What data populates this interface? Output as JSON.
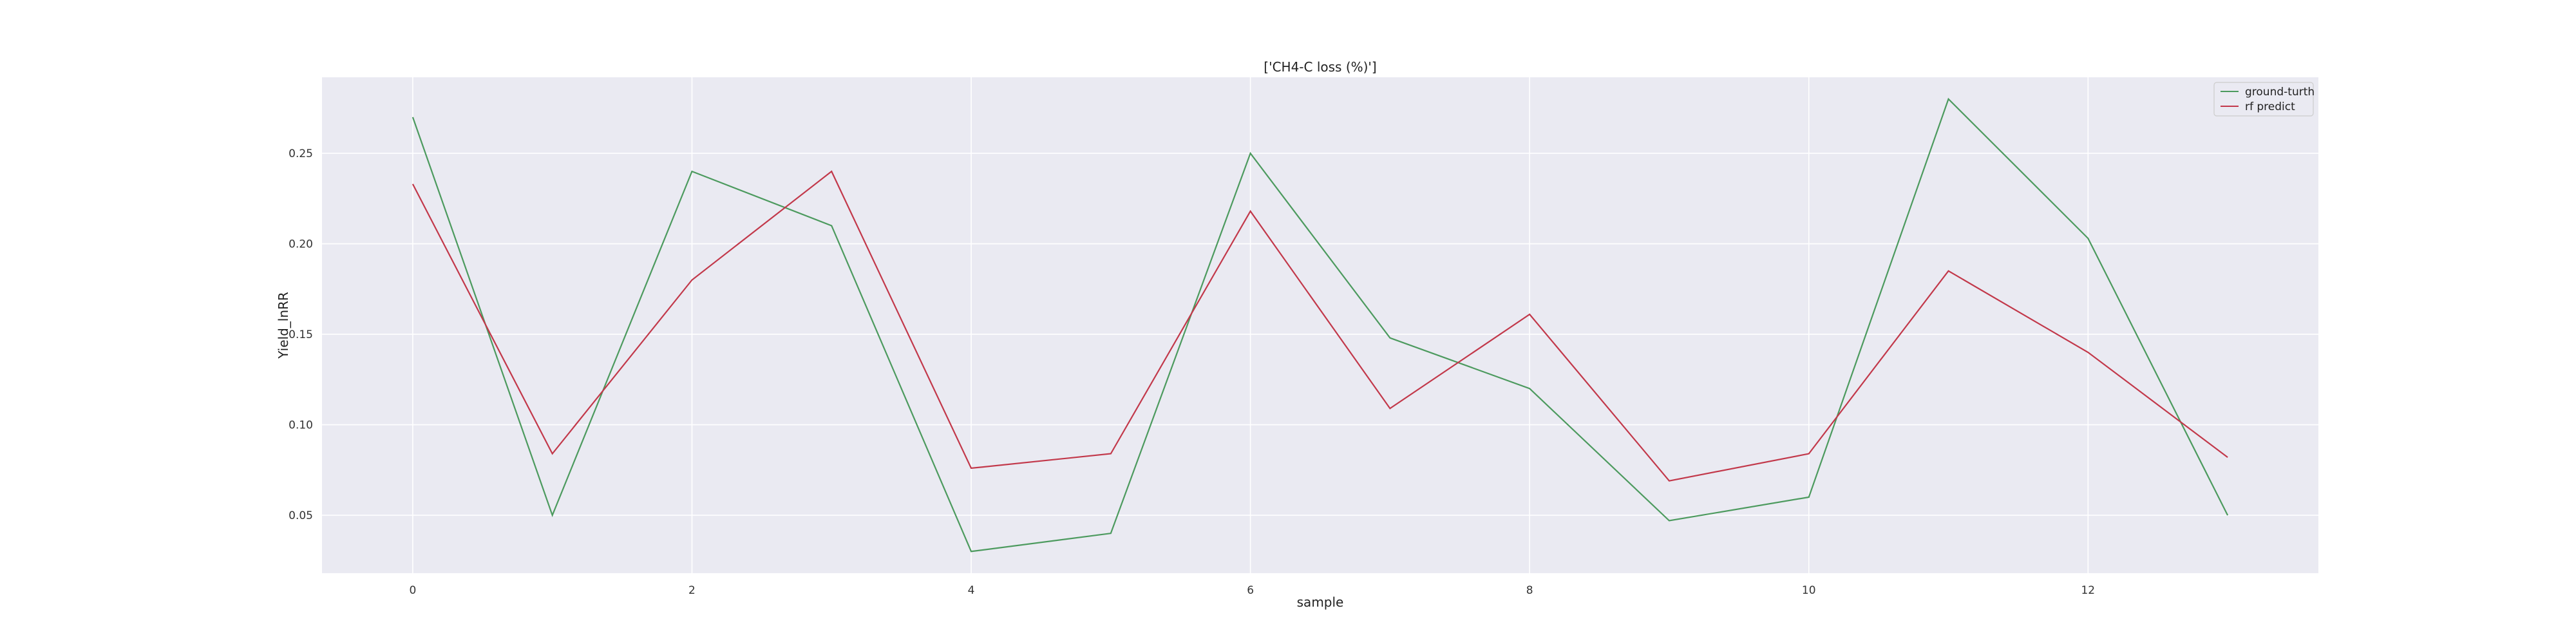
{
  "chart_data": {
    "type": "line",
    "title": "['CH4-C loss (%)']",
    "xlabel": "sample",
    "ylabel": "Yield_lnRR",
    "x": [
      0,
      1,
      2,
      3,
      4,
      5,
      6,
      7,
      8,
      9,
      10,
      11,
      12,
      13
    ],
    "xlim": [
      -0.65,
      13.65
    ],
    "ylim": [
      0.018,
      0.292
    ],
    "xticks": [
      0,
      2,
      4,
      6,
      8,
      10,
      12
    ],
    "yticks": [
      0.05,
      0.1,
      0.15,
      0.2,
      0.25
    ],
    "ytick_labels": [
      "0.05",
      "0.10",
      "0.15",
      "0.20",
      "0.25"
    ],
    "grid": true,
    "legend_position": "top-right",
    "series": [
      {
        "name": "ground-turth",
        "color": "#4c9a5e",
        "values": [
          0.27,
          0.05,
          0.24,
          0.21,
          0.03,
          0.04,
          0.25,
          0.148,
          0.12,
          0.047,
          0.06,
          0.28,
          0.203,
          0.05
        ]
      },
      {
        "name": "rf predict",
        "color": "#c2384a",
        "values": [
          0.233,
          0.084,
          0.18,
          0.24,
          0.076,
          0.084,
          0.218,
          0.109,
          0.161,
          0.069,
          0.084,
          0.185,
          0.14,
          0.082
        ]
      }
    ]
  }
}
